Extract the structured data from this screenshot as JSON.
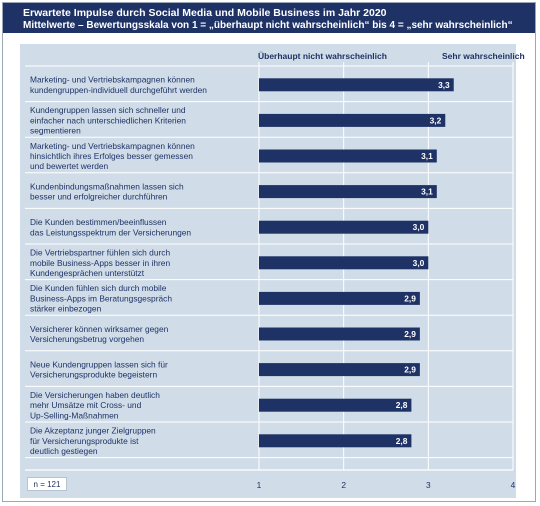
{
  "chart_data": {
    "type": "bar",
    "orientation": "horizontal",
    "title": "Erwartete Impulse durch Social Media und Mobile Business im Jahr 2020",
    "subtitle": "Mittelwerte – Bewertungsskala von 1 = „überhaupt nicht wahrscheinlich“ bis 4 = „sehr wahrscheinlich“",
    "scale_low_label": "Überhaupt nicht wahrscheinlich",
    "scale_high_label": "Sehr wahrscheinlich",
    "categories": [
      [
        "Marketing- und Vertriebskampagnen können",
        "kundengruppen-individuell durchgeführt werden"
      ],
      [
        "Kundengruppen lassen sich schneller und",
        "einfacher nach unterschiedlichen Kriterien",
        "segmentieren"
      ],
      [
        "Marketing- und Vertriebskampagnen können",
        "hinsichtlich ihres Erfolges besser gemessen",
        "und bewertet werden"
      ],
      [
        "Kundenbindungsmaßnahmen lassen sich",
        "besser und erfolgreicher durchführen"
      ],
      [
        "Die Kunden bestimmen/beeinflussen",
        "das Leistungsspektrum der Versicherungen"
      ],
      [
        "Die Vertriebspartner fühlen sich durch",
        "mobile Business-Apps besser in ihren",
        "Kundengesprächen unterstützt"
      ],
      [
        "Die Kunden fühlen sich durch mobile",
        "Business-Apps im Beratungsgespräch",
        "stärker einbezogen"
      ],
      [
        "Versicherer können wirksamer gegen",
        "Versicherungsbetrug vorgehen"
      ],
      [
        "Neue Kundengruppen lassen sich für",
        "Versicherungsprodukte begeistern"
      ],
      [
        "Die Versicherungen haben deutlich",
        "mehr Umsätze mit Cross- und",
        "Up-Selling-Maßnahmen"
      ],
      [
        "Die Akzeptanz junger Zielgruppen",
        "für Versicherungsprodukte ist",
        "deutlich gestiegen"
      ]
    ],
    "values": [
      3.3,
      3.2,
      3.1,
      3.1,
      3.0,
      3.0,
      2.9,
      2.9,
      2.9,
      2.8,
      2.8
    ],
    "value_labels": [
      "3,3",
      "3,2",
      "3,1",
      "3,1",
      "3,0",
      "3,0",
      "2,9",
      "2,9",
      "2,9",
      "2,8",
      "2,8"
    ],
    "xlim": [
      1,
      4
    ],
    "xticks": [
      "1",
      "2",
      "3",
      "4"
    ],
    "grid": true,
    "note": "n = 121",
    "colors": {
      "bar": "#1f3266",
      "header": "#1f3266",
      "plot_background": "#d0dde8",
      "text": "#1f3266"
    }
  }
}
